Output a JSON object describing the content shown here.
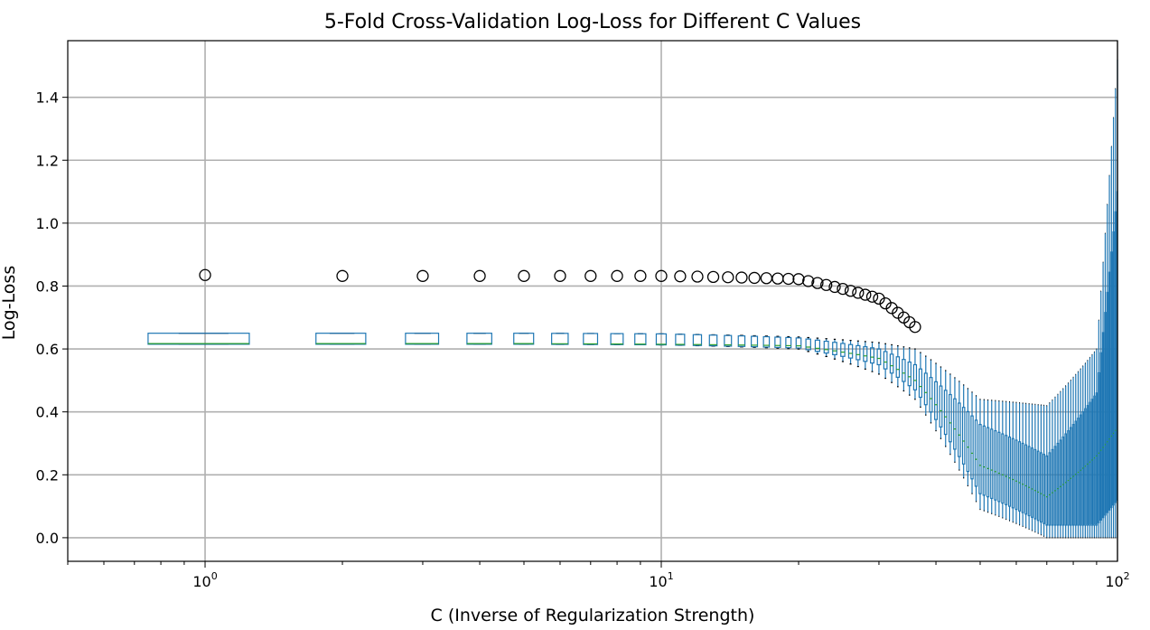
{
  "chart_data": {
    "type": "box",
    "title": "5-Fold Cross-Validation Log-Loss for Different C Values",
    "xlabel": "C (Inverse of Regularization Strength)",
    "ylabel": "Log-Loss",
    "xscale": "log",
    "xlim": [
      0.5,
      100
    ],
    "ylim": [
      -0.075,
      1.58
    ],
    "x_ticks": [
      {
        "value": 1,
        "base": "10",
        "exp": "0"
      },
      {
        "value": 10,
        "base": "10",
        "exp": "1"
      },
      {
        "value": 100,
        "base": "10",
        "exp": "2"
      }
    ],
    "y_ticks": [
      {
        "value": 0.0,
        "label": "0.0"
      },
      {
        "value": 0.2,
        "label": "0.2"
      },
      {
        "value": 0.4,
        "label": "0.4"
      },
      {
        "value": 0.6,
        "label": "0.6"
      },
      {
        "value": 0.8,
        "label": "0.8"
      },
      {
        "value": 1.0,
        "label": "1.0"
      },
      {
        "value": 1.2,
        "label": "1.2"
      },
      {
        "value": 1.4,
        "label": "1.4"
      }
    ],
    "grid": true,
    "positions": "C = 1, 2, 3, ..., 100",
    "box_color": "#1f77b4",
    "median_color": "#2ca02c",
    "flier_color": "#000000",
    "box_summary_samples": [
      {
        "C": 1,
        "whislo": 0.615,
        "q1": 0.615,
        "med": 0.617,
        "q3": 0.65,
        "whishi": 0.65,
        "flier": 0.835
      },
      {
        "C": 2,
        "whislo": 0.615,
        "q1": 0.615,
        "med": 0.617,
        "q3": 0.65,
        "whishi": 0.65,
        "flier": 0.832
      },
      {
        "C": 5,
        "whislo": 0.615,
        "q1": 0.615,
        "med": 0.617,
        "q3": 0.65,
        "whishi": 0.65,
        "flier": 0.832
      },
      {
        "C": 10,
        "whislo": 0.613,
        "q1": 0.613,
        "med": 0.615,
        "q3": 0.648,
        "whishi": 0.648,
        "flier": 0.832
      },
      {
        "C": 20,
        "whislo": 0.6,
        "q1": 0.603,
        "med": 0.61,
        "q3": 0.635,
        "whishi": 0.638,
        "flier": 0.822
      },
      {
        "C": 30,
        "whislo": 0.52,
        "q1": 0.55,
        "med": 0.57,
        "q3": 0.6,
        "whishi": 0.62,
        "flier": 0.76
      },
      {
        "C": 36,
        "whislo": 0.44,
        "q1": 0.47,
        "med": 0.5,
        "q3": 0.55,
        "whishi": 0.6,
        "flier": 0.67
      },
      {
        "C": 50,
        "whislo": 0.09,
        "q1": 0.14,
        "med": 0.23,
        "q3": 0.36,
        "whishi": 0.44,
        "flier": null
      },
      {
        "C": 70,
        "whislo": 0.0,
        "q1": 0.04,
        "med": 0.13,
        "q3": 0.26,
        "whishi": 0.42,
        "flier": null
      },
      {
        "C": 90,
        "whislo": 0.0,
        "q1": 0.04,
        "med": 0.26,
        "q3": 0.46,
        "whishi": 0.6,
        "flier": null
      },
      {
        "C": 100,
        "whislo": 0.0,
        "q1": 0.12,
        "med": 0.35,
        "q3": 1.1,
        "whishi": 1.52,
        "flier": null
      }
    ]
  }
}
